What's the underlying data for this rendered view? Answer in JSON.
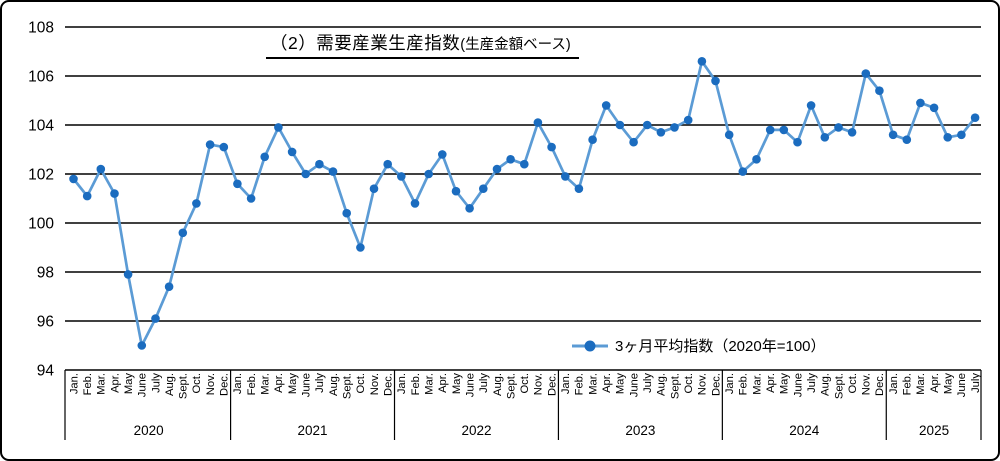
{
  "title": {
    "main": "（2）需要産業生産指数",
    "sub": "(生産金額ベース)"
  },
  "legend": {
    "label": "3ヶ月平均指数（2020年=100）"
  },
  "chart_data": {
    "type": "line",
    "title": "（2）需要産業生産指数(生産金額ベース)",
    "series_name": "3ヶ月平均指数（2020年=100）",
    "ylim": [
      94,
      108
    ],
    "ytick_step": 2,
    "yticks": [
      94,
      96,
      98,
      100,
      102,
      104,
      106,
      108
    ],
    "grid": true,
    "legend_position": "inside-bottom-right",
    "month_labels": [
      "Jan.",
      "Feb.",
      "Mar.",
      "Apr.",
      "May",
      "June",
      "July",
      "Aug.",
      "Sept.",
      "Oct.",
      "Nov.",
      "Dec."
    ],
    "years": [
      {
        "year": "2020",
        "values": [
          101.8,
          101.1,
          102.2,
          101.2,
          97.9,
          95.0,
          96.1,
          97.4,
          99.6,
          100.8,
          103.2,
          103.1
        ]
      },
      {
        "year": "2021",
        "values": [
          101.6,
          101.0,
          102.7,
          103.9,
          102.9,
          102.0,
          102.4,
          102.1,
          100.4,
          99.0,
          101.4,
          102.4
        ]
      },
      {
        "year": "2022",
        "values": [
          101.9,
          100.8,
          102.0,
          102.8,
          101.3,
          100.6,
          101.4,
          102.2,
          102.6,
          102.4,
          104.1,
          103.1
        ]
      },
      {
        "year": "2023",
        "values": [
          101.9,
          101.4,
          103.4,
          104.8,
          104.0,
          103.3,
          104.0,
          103.7,
          103.9,
          104.2,
          106.6,
          105.8
        ]
      },
      {
        "year": "2024",
        "values": [
          103.6,
          102.1,
          102.6,
          103.8,
          103.8,
          103.3,
          104.8,
          103.5,
          103.9,
          103.7,
          106.1,
          105.4
        ]
      },
      {
        "year": "2025",
        "values": [
          103.6,
          103.4,
          104.9,
          104.7,
          103.5,
          103.6,
          104.3
        ]
      }
    ],
    "colors": {
      "line": "#5B9BD5",
      "marker": "#1B6CBF",
      "grid": "#000000",
      "text": "#000000"
    }
  }
}
